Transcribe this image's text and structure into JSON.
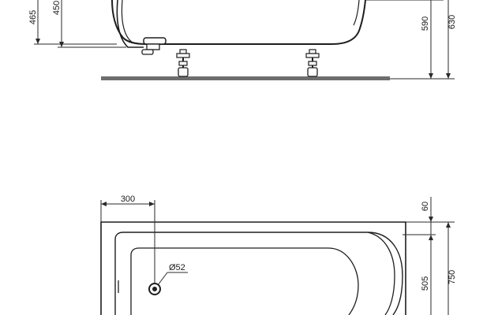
{
  "side_view": {
    "dimensions": {
      "height_465": "465",
      "height_450": "450",
      "height_590": "590",
      "height_630": "630"
    }
  },
  "plan_view": {
    "dimensions": {
      "offset_300": "300",
      "rim_60": "60",
      "inner_505": "505",
      "width_750": "750",
      "drain_diameter": "Ø52"
    }
  },
  "colors": {
    "line": "#1e1e1e",
    "floor": "#6e6e6e",
    "background": "#ffffff"
  }
}
